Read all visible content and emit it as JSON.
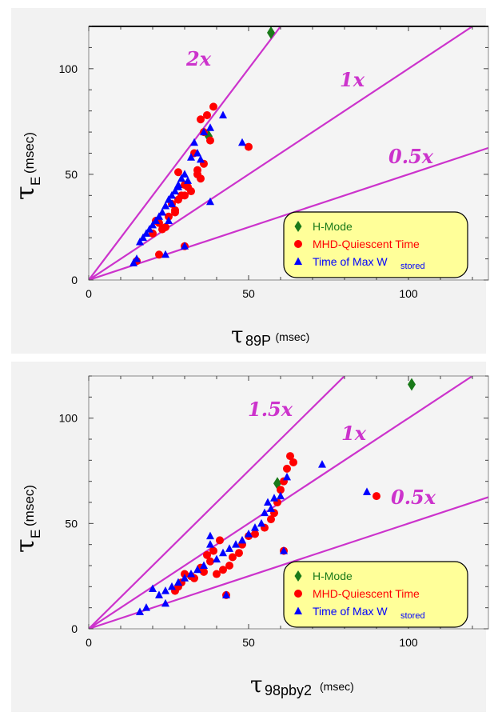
{
  "chart_data": [
    {
      "type": "scatter",
      "ylabel_symbol": "τ",
      "ylabel_sub": "E",
      "ylabel_unit": "(msec)",
      "xlabel_symbol": "τ",
      "xlabel_sub": "89P",
      "xlabel_unit": "(msec)",
      "xlim": [
        0,
        125
      ],
      "ylim": [
        0,
        120
      ],
      "xticks": [
        0,
        50,
        100
      ],
      "yticks": [
        0,
        50,
        100
      ],
      "reference_lines": [
        {
          "label": "2x",
          "slope": 2
        },
        {
          "label": "1x",
          "slope": 1
        },
        {
          "label": "0.5x",
          "slope": 0.5
        }
      ],
      "legend": [
        {
          "label": "H-Mode",
          "color": "#1a7a1a",
          "marker": "diamond"
        },
        {
          "label": "MHD-Quiescent Time",
          "color": "#ff0000",
          "marker": "circle"
        },
        {
          "label": "Time of Max W",
          "sub": "stored",
          "color": "#0000ff",
          "marker": "triangle"
        }
      ],
      "series": [
        {
          "name": "H-Mode",
          "marker": "diamond",
          "color": "#1a7a1a",
          "x": [
            57,
            37.5
          ],
          "y": [
            117,
            68
          ]
        },
        {
          "name": "MHD-Quiescent Time",
          "marker": "circle",
          "color": "#ff0000",
          "x": [
            39,
            37,
            35,
            36,
            38,
            50,
            33,
            36,
            34,
            30,
            28,
            32,
            35,
            30,
            26,
            27,
            25,
            21,
            22,
            24,
            23,
            20,
            30,
            15,
            22,
            28,
            31,
            34,
            29,
            27
          ],
          "y": [
            82,
            78,
            76,
            70,
            66,
            63,
            60,
            55,
            52,
            45,
            51,
            42,
            48,
            40,
            36,
            33,
            30,
            28,
            27,
            25,
            24,
            22,
            16,
            9,
            12,
            38,
            44,
            50,
            40,
            32
          ]
        },
        {
          "name": "Time of Max W stored",
          "marker": "triangle",
          "color": "#0000ff",
          "x": [
            42,
            48,
            38,
            36,
            34,
            33,
            32,
            30,
            29,
            28,
            27,
            26,
            25,
            24,
            23,
            22,
            21,
            20,
            19,
            18,
            17,
            16,
            15,
            14,
            30,
            38,
            24,
            35,
            31,
            28,
            26,
            25
          ],
          "y": [
            78,
            65,
            72,
            70,
            60,
            65,
            58,
            50,
            48,
            45,
            42,
            40,
            38,
            35,
            32,
            30,
            28,
            26,
            24,
            22,
            20,
            18,
            10,
            8,
            16,
            37,
            12,
            57,
            47,
            44,
            36,
            28
          ]
        }
      ]
    },
    {
      "type": "scatter",
      "ylabel_symbol": "τ",
      "ylabel_sub": "E",
      "ylabel_unit": "(msec)",
      "xlabel_symbol": "τ",
      "xlabel_sub": "98pby2",
      "xlabel_unit": "(msec)",
      "xlim": [
        0,
        125
      ],
      "ylim": [
        0,
        120
      ],
      "xticks": [
        0,
        50,
        100
      ],
      "yticks": [
        0,
        50,
        100
      ],
      "reference_lines": [
        {
          "label": "1.5x",
          "slope": 1.5
        },
        {
          "label": "1x",
          "slope": 1
        },
        {
          "label": "0.5x",
          "slope": 0.5
        }
      ],
      "legend": [
        {
          "label": "H-Mode",
          "color": "#1a7a1a",
          "marker": "diamond"
        },
        {
          "label": "MHD-Quiescent Time",
          "color": "#ff0000",
          "marker": "circle"
        },
        {
          "label": "Time of Max W",
          "sub": "stored",
          "color": "#0000ff",
          "marker": "triangle"
        }
      ],
      "series": [
        {
          "name": "H-Mode",
          "marker": "diamond",
          "color": "#1a7a1a",
          "x": [
            101,
            59
          ],
          "y": [
            116,
            69
          ]
        },
        {
          "name": "MHD-Quiescent Time",
          "marker": "circle",
          "color": "#ff0000",
          "x": [
            63,
            64,
            62,
            61,
            60,
            59,
            58,
            90,
            57,
            55,
            52,
            50,
            48,
            47,
            45,
            44,
            42,
            40,
            39,
            38,
            36,
            35,
            33,
            32,
            30,
            29,
            28,
            27,
            43,
            61,
            37,
            41
          ],
          "y": [
            82,
            79,
            76,
            70,
            66,
            60,
            55,
            63,
            52,
            48,
            45,
            44,
            40,
            36,
            34,
            30,
            28,
            26,
            37,
            32,
            27,
            29,
            24,
            25,
            26,
            22,
            20,
            18,
            16,
            37,
            35,
            42
          ]
        },
        {
          "name": "Time of Max W stored",
          "marker": "triangle",
          "color": "#0000ff",
          "x": [
            73,
            87,
            62,
            60,
            58,
            57,
            56,
            55,
            54,
            52,
            50,
            48,
            46,
            44,
            42,
            40,
            38,
            36,
            34,
            32,
            30,
            28,
            26,
            24,
            22,
            20,
            18,
            16,
            43,
            61,
            24,
            38
          ],
          "y": [
            78,
            65,
            72,
            63,
            62,
            57,
            60,
            55,
            50,
            48,
            45,
            42,
            40,
            38,
            36,
            33,
            44,
            30,
            28,
            26,
            24,
            22,
            20,
            18,
            16,
            19,
            10,
            8,
            16,
            37,
            12,
            40
          ]
        }
      ]
    }
  ]
}
